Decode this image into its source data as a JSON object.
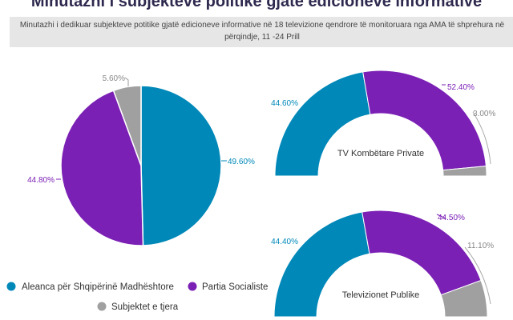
{
  "title": "Minutazhi i subjekteve politike gjatë edicioneve informative",
  "subtitle": "Minutazhi i dedikuar subjekteve potitike gjatë edicioneve informative në 18 televizione qendrore të monitoruara nga AMA të shprehura në përqindje, 11 -24 Prill",
  "colors": {
    "aleanca": "#0088b8",
    "partia": "#7b20b5",
    "tjera": "#a0a0a0"
  },
  "legend": [
    {
      "label": "Aleanca për Shqipërinë Madhështore",
      "color": "#0088b8"
    },
    {
      "label": "Partia Socialiste",
      "color": "#7b20b5"
    },
    {
      "label": "Subjektet e tjera",
      "color": "#a0a0a0"
    }
  ],
  "chart_data": [
    {
      "type": "pie",
      "title": "",
      "categories": [
        "Aleanca për Shqipërinë Madhështore",
        "Partia Socialiste",
        "Subjektet e tjera"
      ],
      "values": [
        49.6,
        44.8,
        5.6
      ],
      "labels": [
        "49.60%",
        "44.80%",
        "5.60%"
      ]
    },
    {
      "type": "pie",
      "subtype": "semi-donut",
      "title": "TV Kombëtare Private",
      "categories": [
        "Aleanca për Shqipërinë Madhështore",
        "Partia Socialiste",
        "Subjektet e tjera"
      ],
      "values": [
        44.6,
        52.4,
        3.0
      ],
      "labels": [
        "44.60%",
        "52.40%",
        "3.00%"
      ]
    },
    {
      "type": "pie",
      "subtype": "semi-donut",
      "title": "Televizionet Publike",
      "categories": [
        "Aleanca për Shqipërinë Madhështore",
        "Partia Socialiste",
        "Subjektet e tjera"
      ],
      "values": [
        44.4,
        44.5,
        11.1
      ],
      "labels": [
        "44.40%",
        "44.50%",
        "11.10%"
      ]
    }
  ]
}
